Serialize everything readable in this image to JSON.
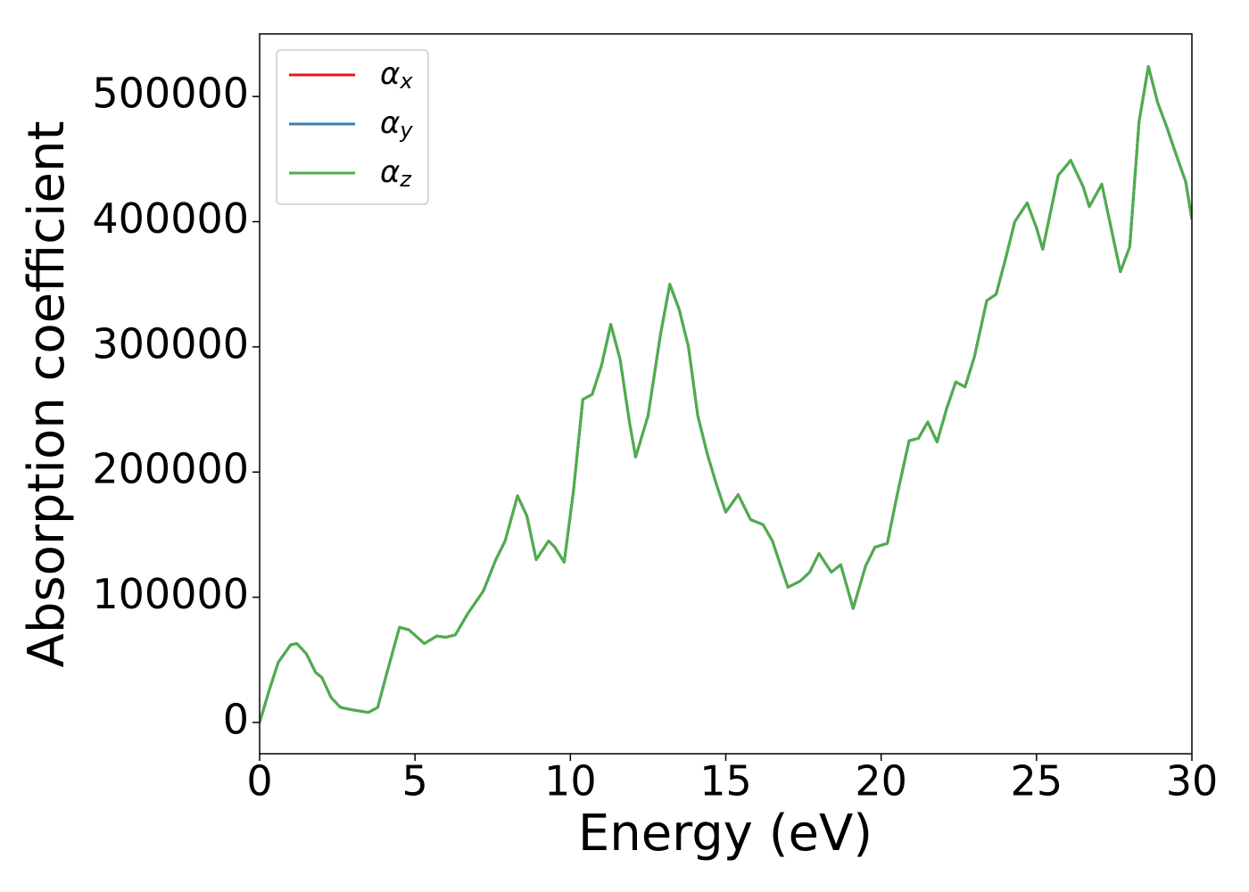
{
  "chart_data": {
    "type": "line",
    "xlabel": "Energy (eV)",
    "ylabel": "Absorption coefficient",
    "x": [
      0,
      0.3,
      0.6,
      1.0,
      1.2,
      1.5,
      1.8,
      2.0,
      2.3,
      2.6,
      3.0,
      3.5,
      3.8,
      4.1,
      4.5,
      4.8,
      5.3,
      5.7,
      6.0,
      6.3,
      6.7,
      7.2,
      7.6,
      7.9,
      8.3,
      8.6,
      8.9,
      9.3,
      9.5,
      9.8,
      10.1,
      10.4,
      10.7,
      11.0,
      11.3,
      11.6,
      11.9,
      12.1,
      12.5,
      12.9,
      13.2,
      13.5,
      13.8,
      14.1,
      14.4,
      14.7,
      15.0,
      15.4,
      15.8,
      16.2,
      16.5,
      17.0,
      17.4,
      17.7,
      18.0,
      18.4,
      18.7,
      19.1,
      19.5,
      19.8,
      20.2,
      20.5,
      20.9,
      21.2,
      21.5,
      21.8,
      22.1,
      22.4,
      22.7,
      23.0,
      23.4,
      23.7,
      24.0,
      24.3,
      24.7,
      25.0,
      25.2,
      25.7,
      26.1,
      26.5,
      26.7,
      27.1,
      27.4,
      27.7,
      28.0,
      28.3,
      28.6,
      28.9,
      29.2,
      29.5,
      29.8,
      30.0
    ],
    "series": [
      {
        "name": "αx",
        "color": "#e41a1c",
        "values": [
          0,
          25000,
          48000,
          62000,
          63000,
          55000,
          40000,
          36000,
          20000,
          12000,
          10000,
          8000,
          12000,
          40000,
          76000,
          74000,
          63000,
          69000,
          68000,
          70000,
          87000,
          105000,
          130000,
          145000,
          181000,
          165000,
          130000,
          145000,
          140000,
          128000,
          185000,
          258000,
          262000,
          285000,
          318000,
          290000,
          240000,
          212000,
          245000,
          310000,
          350000,
          330000,
          300000,
          245000,
          215000,
          190000,
          168000,
          182000,
          162000,
          158000,
          145000,
          108000,
          113000,
          120000,
          135000,
          120000,
          126000,
          91000,
          125000,
          140000,
          143000,
          180000,
          225000,
          227000,
          240000,
          224000,
          250000,
          272000,
          268000,
          292000,
          337000,
          342000,
          370000,
          400000,
          415000,
          395000,
          378000,
          437000,
          449000,
          428000,
          412000,
          430000,
          395000,
          360000,
          380000,
          480000,
          524000,
          495000,
          475000,
          453000,
          432000,
          402000
        ]
      },
      {
        "name": "αy",
        "color": "#377eb8",
        "values": [
          0,
          25000,
          48000,
          62000,
          63000,
          55000,
          40000,
          36000,
          20000,
          12000,
          10000,
          8000,
          12000,
          40000,
          76000,
          74000,
          63000,
          69000,
          68000,
          70000,
          87000,
          105000,
          130000,
          145000,
          181000,
          165000,
          130000,
          145000,
          140000,
          128000,
          185000,
          258000,
          262000,
          285000,
          318000,
          290000,
          240000,
          212000,
          245000,
          310000,
          350000,
          330000,
          300000,
          245000,
          215000,
          190000,
          168000,
          182000,
          162000,
          158000,
          145000,
          108000,
          113000,
          120000,
          135000,
          120000,
          126000,
          91000,
          125000,
          140000,
          143000,
          180000,
          225000,
          227000,
          240000,
          224000,
          250000,
          272000,
          268000,
          292000,
          337000,
          342000,
          370000,
          400000,
          415000,
          395000,
          378000,
          437000,
          449000,
          428000,
          412000,
          430000,
          395000,
          360000,
          380000,
          480000,
          524000,
          495000,
          475000,
          453000,
          432000,
          402000
        ]
      },
      {
        "name": "αz",
        "color": "#4daf4a",
        "values": [
          0,
          25000,
          48000,
          62000,
          63000,
          55000,
          40000,
          36000,
          20000,
          12000,
          10000,
          8000,
          12000,
          40000,
          76000,
          74000,
          63000,
          69000,
          68000,
          70000,
          87000,
          105000,
          130000,
          145000,
          181000,
          165000,
          130000,
          145000,
          140000,
          128000,
          185000,
          258000,
          262000,
          285000,
          318000,
          290000,
          240000,
          212000,
          245000,
          310000,
          350000,
          330000,
          300000,
          245000,
          215000,
          190000,
          168000,
          182000,
          162000,
          158000,
          145000,
          108000,
          113000,
          120000,
          135000,
          120000,
          126000,
          91000,
          125000,
          140000,
          143000,
          180000,
          225000,
          227000,
          240000,
          224000,
          250000,
          272000,
          268000,
          292000,
          337000,
          342000,
          370000,
          400000,
          415000,
          395000,
          378000,
          437000,
          449000,
          428000,
          412000,
          430000,
          395000,
          360000,
          380000,
          480000,
          524000,
          495000,
          475000,
          453000,
          432000,
          402000
        ]
      }
    ],
    "xlim": [
      0,
      30
    ],
    "xticks": [
      0,
      5,
      10,
      15,
      20,
      25,
      30
    ],
    "ylim": [
      -25000,
      550000
    ],
    "yticks": [
      0,
      100000,
      200000,
      300000,
      400000,
      500000
    ],
    "grid": false,
    "legend": "upper left"
  }
}
